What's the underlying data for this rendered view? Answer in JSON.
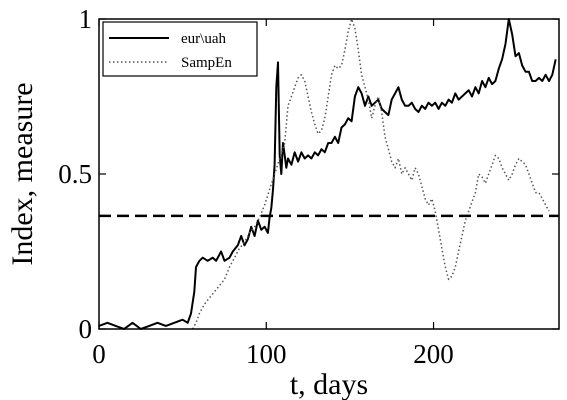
{
  "chart_data": {
    "type": "line",
    "xlabel": "t, days",
    "ylabel": "Index, measure",
    "xlim": [
      0,
      275
    ],
    "ylim": [
      0,
      1
    ],
    "xticks": [
      "0",
      "100",
      "200"
    ],
    "xtick_values": [
      0,
      100,
      200
    ],
    "yticks": [
      "0",
      "0.5",
      "1"
    ],
    "ytick_values": [
      0,
      0.5,
      1
    ],
    "grid": false,
    "legend_position": "top-left",
    "series": [
      {
        "name": "eur\\uah",
        "style": "solid",
        "color": "#000000",
        "points": [
          [
            0,
            0.01
          ],
          [
            5,
            0.02
          ],
          [
            10,
            0.01
          ],
          [
            15,
            0.0
          ],
          [
            20,
            0.02
          ],
          [
            25,
            0.0
          ],
          [
            30,
            0.01
          ],
          [
            35,
            0.02
          ],
          [
            40,
            0.01
          ],
          [
            45,
            0.02
          ],
          [
            50,
            0.03
          ],
          [
            53,
            0.02
          ],
          [
            55,
            0.05
          ],
          [
            57,
            0.12
          ],
          [
            58,
            0.2
          ],
          [
            60,
            0.22
          ],
          [
            62,
            0.23
          ],
          [
            65,
            0.22
          ],
          [
            68,
            0.23
          ],
          [
            70,
            0.22
          ],
          [
            73,
            0.25
          ],
          [
            75,
            0.22
          ],
          [
            78,
            0.23
          ],
          [
            80,
            0.25
          ],
          [
            83,
            0.27
          ],
          [
            85,
            0.3
          ],
          [
            87,
            0.27
          ],
          [
            89,
            0.29
          ],
          [
            91,
            0.33
          ],
          [
            93,
            0.3
          ],
          [
            95,
            0.35
          ],
          [
            97,
            0.32
          ],
          [
            99,
            0.33
          ],
          [
            101,
            0.31
          ],
          [
            102,
            0.36
          ],
          [
            103,
            0.39
          ],
          [
            104,
            0.45
          ],
          [
            105,
            0.53
          ],
          [
            106,
            0.78
          ],
          [
            107,
            0.86
          ],
          [
            108,
            0.56
          ],
          [
            109,
            0.5
          ],
          [
            110,
            0.6
          ],
          [
            111,
            0.56
          ],
          [
            112,
            0.52
          ],
          [
            113,
            0.55
          ],
          [
            115,
            0.53
          ],
          [
            117,
            0.57
          ],
          [
            119,
            0.54
          ],
          [
            121,
            0.57
          ],
          [
            123,
            0.55
          ],
          [
            125,
            0.56
          ],
          [
            127,
            0.55
          ],
          [
            129,
            0.57
          ],
          [
            131,
            0.56
          ],
          [
            133,
            0.58
          ],
          [
            135,
            0.57
          ],
          [
            137,
            0.6
          ],
          [
            139,
            0.6
          ],
          [
            141,
            0.62
          ],
          [
            143,
            0.6
          ],
          [
            145,
            0.65
          ],
          [
            147,
            0.66
          ],
          [
            149,
            0.68
          ],
          [
            151,
            0.67
          ],
          [
            153,
            0.75
          ],
          [
            155,
            0.78
          ],
          [
            157,
            0.76
          ],
          [
            159,
            0.72
          ],
          [
            161,
            0.75
          ],
          [
            163,
            0.72
          ],
          [
            165,
            0.73
          ],
          [
            167,
            0.74
          ],
          [
            169,
            0.71
          ],
          [
            171,
            0.7
          ],
          [
            173,
            0.69
          ],
          [
            175,
            0.74
          ],
          [
            177,
            0.76
          ],
          [
            179,
            0.78
          ],
          [
            181,
            0.74
          ],
          [
            183,
            0.72
          ],
          [
            185,
            0.72
          ],
          [
            187,
            0.73
          ],
          [
            189,
            0.71
          ],
          [
            191,
            0.7
          ],
          [
            193,
            0.72
          ],
          [
            195,
            0.71
          ],
          [
            197,
            0.73
          ],
          [
            199,
            0.72
          ],
          [
            201,
            0.73
          ],
          [
            203,
            0.71
          ],
          [
            205,
            0.73
          ],
          [
            207,
            0.72
          ],
          [
            209,
            0.74
          ],
          [
            211,
            0.73
          ],
          [
            213,
            0.76
          ],
          [
            215,
            0.74
          ],
          [
            217,
            0.75
          ],
          [
            219,
            0.76
          ],
          [
            221,
            0.77
          ],
          [
            223,
            0.75
          ],
          [
            225,
            0.78
          ],
          [
            227,
            0.76
          ],
          [
            229,
            0.8
          ],
          [
            231,
            0.78
          ],
          [
            233,
            0.81
          ],
          [
            235,
            0.79
          ],
          [
            237,
            0.8
          ],
          [
            239,
            0.84
          ],
          [
            241,
            0.87
          ],
          [
            243,
            0.92
          ],
          [
            245,
            1.0
          ],
          [
            247,
            0.95
          ],
          [
            249,
            0.88
          ],
          [
            251,
            0.89
          ],
          [
            253,
            0.85
          ],
          [
            255,
            0.83
          ],
          [
            257,
            0.83
          ],
          [
            259,
            0.8
          ],
          [
            261,
            0.8
          ],
          [
            263,
            0.81
          ],
          [
            265,
            0.8
          ],
          [
            267,
            0.82
          ],
          [
            269,
            0.8
          ],
          [
            271,
            0.82
          ],
          [
            273,
            0.87
          ]
        ]
      },
      {
        "name": "SampEn",
        "style": "dotted",
        "color": "#555555",
        "points": [
          [
            56,
            0.0
          ],
          [
            58,
            0.02
          ],
          [
            60,
            0.05
          ],
          [
            63,
            0.08
          ],
          [
            66,
            0.1
          ],
          [
            69,
            0.12
          ],
          [
            72,
            0.14
          ],
          [
            75,
            0.16
          ],
          [
            78,
            0.2
          ],
          [
            81,
            0.23
          ],
          [
            84,
            0.26
          ],
          [
            87,
            0.28
          ],
          [
            90,
            0.31
          ],
          [
            93,
            0.33
          ],
          [
            96,
            0.36
          ],
          [
            99,
            0.4
          ],
          [
            102,
            0.45
          ],
          [
            105,
            0.5
          ],
          [
            108,
            0.55
          ],
          [
            111,
            0.6
          ],
          [
            113,
            0.72
          ],
          [
            115,
            0.75
          ],
          [
            117,
            0.78
          ],
          [
            119,
            0.81
          ],
          [
            121,
            0.82
          ],
          [
            123,
            0.8
          ],
          [
            125,
            0.75
          ],
          [
            127,
            0.7
          ],
          [
            129,
            0.66
          ],
          [
            131,
            0.63
          ],
          [
            133,
            0.64
          ],
          [
            135,
            0.68
          ],
          [
            137,
            0.75
          ],
          [
            139,
            0.82
          ],
          [
            141,
            0.85
          ],
          [
            143,
            0.84
          ],
          [
            145,
            0.85
          ],
          [
            147,
            0.9
          ],
          [
            149,
            0.96
          ],
          [
            151,
            1.0
          ],
          [
            153,
            0.97
          ],
          [
            155,
            0.9
          ],
          [
            157,
            0.82
          ],
          [
            159,
            0.78
          ],
          [
            161,
            0.74
          ],
          [
            163,
            0.68
          ],
          [
            165,
            0.72
          ],
          [
            167,
            0.75
          ],
          [
            169,
            0.7
          ],
          [
            171,
            0.62
          ],
          [
            173,
            0.58
          ],
          [
            175,
            0.54
          ],
          [
            177,
            0.52
          ],
          [
            179,
            0.55
          ],
          [
            181,
            0.5
          ],
          [
            183,
            0.52
          ],
          [
            185,
            0.5
          ],
          [
            187,
            0.48
          ],
          [
            189,
            0.52
          ],
          [
            191,
            0.5
          ],
          [
            193,
            0.46
          ],
          [
            195,
            0.42
          ],
          [
            197,
            0.4
          ],
          [
            199,
            0.42
          ],
          [
            201,
            0.38
          ],
          [
            203,
            0.32
          ],
          [
            205,
            0.26
          ],
          [
            207,
            0.2
          ],
          [
            209,
            0.16
          ],
          [
            211,
            0.17
          ],
          [
            213,
            0.2
          ],
          [
            215,
            0.25
          ],
          [
            217,
            0.3
          ],
          [
            219,
            0.35
          ],
          [
            221,
            0.38
          ],
          [
            223,
            0.41
          ],
          [
            225,
            0.44
          ],
          [
            227,
            0.5
          ],
          [
            229,
            0.49
          ],
          [
            231,
            0.47
          ],
          [
            233,
            0.5
          ],
          [
            235,
            0.53
          ],
          [
            237,
            0.56
          ],
          [
            239,
            0.55
          ],
          [
            241,
            0.52
          ],
          [
            243,
            0.5
          ],
          [
            245,
            0.48
          ],
          [
            247,
            0.5
          ],
          [
            249,
            0.53
          ],
          [
            251,
            0.55
          ],
          [
            253,
            0.54
          ],
          [
            255,
            0.53
          ],
          [
            257,
            0.5
          ],
          [
            259,
            0.47
          ],
          [
            261,
            0.44
          ],
          [
            263,
            0.44
          ],
          [
            265,
            0.42
          ],
          [
            267,
            0.4
          ],
          [
            269,
            0.38
          ]
        ]
      },
      {
        "name": "",
        "style": "dashed",
        "color": "#000000",
        "points": [
          [
            0,
            0.365
          ],
          [
            275,
            0.365
          ]
        ]
      }
    ]
  }
}
